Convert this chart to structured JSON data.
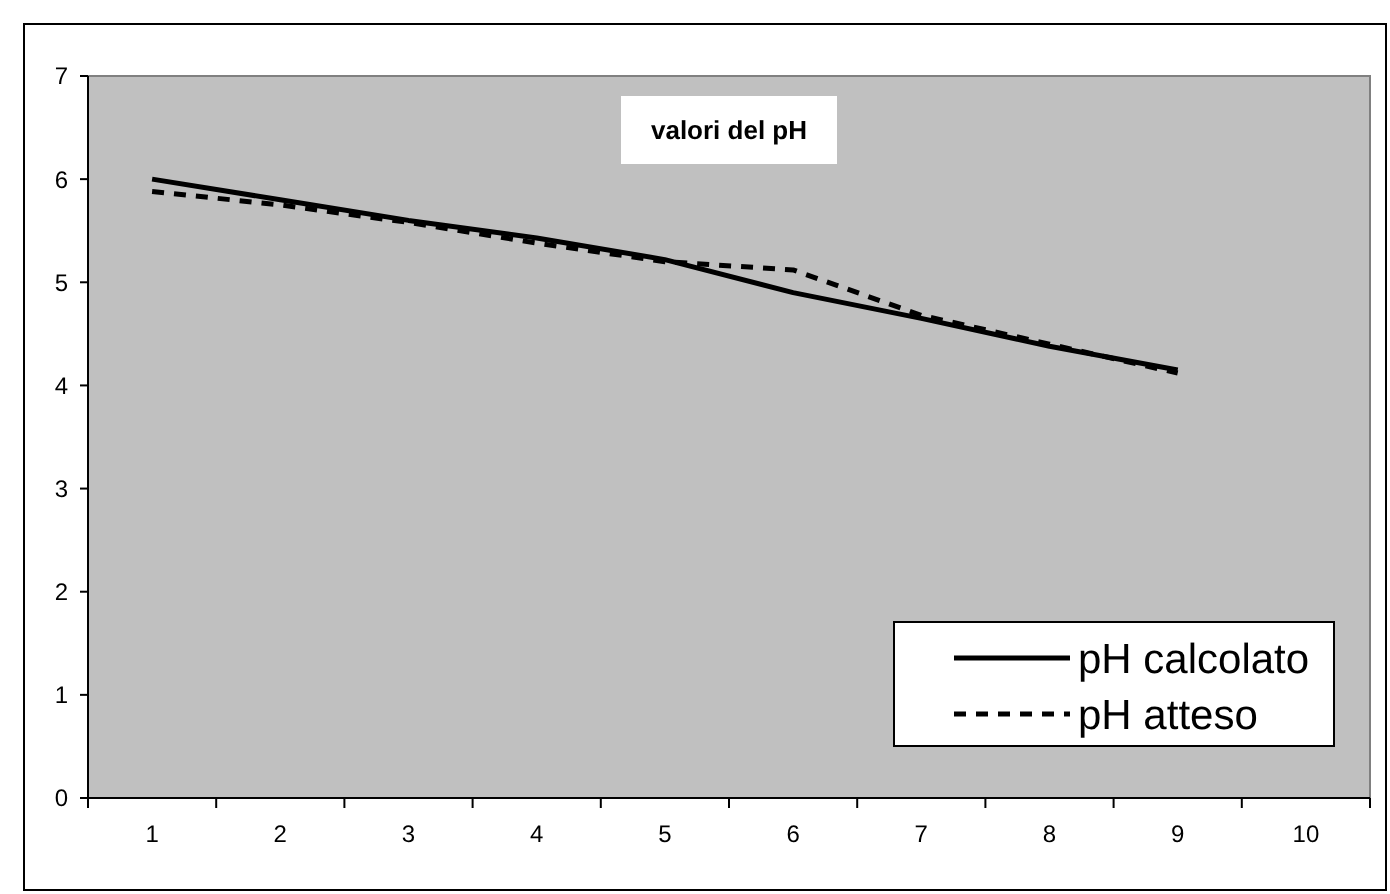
{
  "chart_data": {
    "type": "line",
    "title": "valori del pH",
    "categories": [
      "1",
      "2",
      "3",
      "4",
      "5",
      "6",
      "7",
      "8",
      "9",
      "10"
    ],
    "series": [
      {
        "name": "pH calcolato",
        "color": "#000000",
        "line_style": "solid",
        "values": [
          6.0,
          5.8,
          5.6,
          5.43,
          5.22,
          4.9,
          4.65,
          4.38,
          4.15,
          null
        ]
      },
      {
        "name": "pH atteso",
        "color": "#000000",
        "line_style": "dashed",
        "values": [
          5.88,
          5.75,
          5.58,
          5.38,
          5.2,
          5.12,
          4.68,
          4.4,
          4.12,
          null
        ]
      }
    ],
    "ylim": [
      0,
      7
    ],
    "yticks": [
      0,
      1,
      2,
      3,
      4,
      5,
      6,
      7
    ],
    "grid": false,
    "legend": "bottom right",
    "marker": "none"
  }
}
